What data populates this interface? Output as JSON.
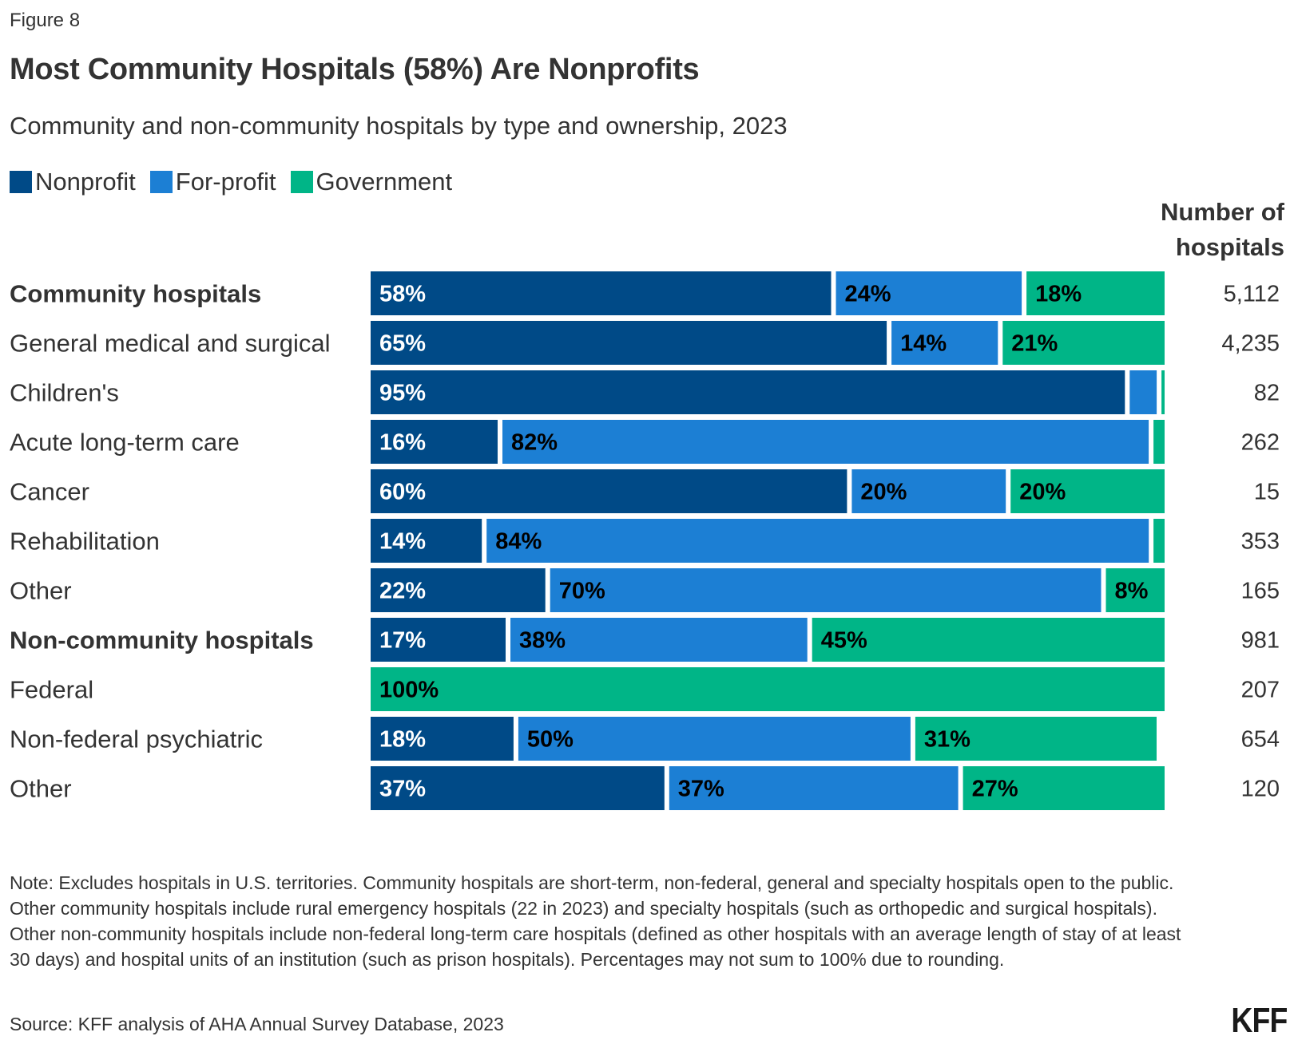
{
  "figure_label": "Figure 8",
  "title": "Most Community Hospitals (58%) Are Nonprofits",
  "subtitle": "Community and non-community hospitals by type and ownership, 2023",
  "legend": [
    {
      "label": "Nonprofit",
      "color": "#004A87"
    },
    {
      "label": "For-profit",
      "color": "#1C7FD4"
    },
    {
      "label": "Government",
      "color": "#00B587"
    }
  ],
  "count_header": [
    "Number of",
    "hospitals"
  ],
  "note": "Note: Excludes hospitals in U.S. territories. Community hospitals are short-term, non-federal, general and specialty hospitals open to the public. Other community hospitals include rural emergency hospitals (22 in 2023) and specialty hospitals (such as orthopedic and surgical hospitals). Other non-community hospitals include non-federal long-term care hospitals (defined as other hospitals with an average length of stay of at least 30 days) and hospital units of an institution (such as prison hospitals). Percentages may not sum to 100% due to rounding.",
  "source": "Source: KFF analysis of AHA Annual Survey Database, 2023",
  "logo": "KFF",
  "chart_data": {
    "type": "bar",
    "orientation": "horizontal",
    "stacked": true,
    "percent_scale": true,
    "title": "Most Community Hospitals (58%) Are Nonprofits",
    "subtitle": "Community and non-community hospitals by type and ownership, 2023",
    "xlabel": "",
    "ylabel": "",
    "xlim": [
      0,
      100
    ],
    "grid": false,
    "legend_position": "top-left",
    "categories": [
      "Community hospitals",
      "General medical and surgical",
      "Children's",
      "Acute long-term care",
      "Cancer",
      "Rehabilitation",
      "Other",
      "Non-community hospitals",
      "Federal",
      "Non-federal psychiatric",
      "Other"
    ],
    "category_bold": [
      true,
      false,
      false,
      false,
      false,
      false,
      false,
      true,
      false,
      false,
      false
    ],
    "series": [
      {
        "name": "Nonprofit",
        "color": "#004A87",
        "label_color": "#ffffff",
        "values": [
          58,
          65,
          95,
          16,
          60,
          14,
          22,
          17,
          0,
          18,
          37
        ],
        "labels": [
          "58%",
          "65%",
          "95%",
          "16%",
          "60%",
          "14%",
          "22%",
          "17%",
          "",
          "18%",
          "37%"
        ]
      },
      {
        "name": "For-profit",
        "color": "#1C7FD4",
        "label_color": "#000000",
        "values": [
          24,
          14,
          4,
          82,
          20,
          84,
          70,
          38,
          0,
          50,
          37
        ],
        "labels": [
          "24%",
          "14%",
          "",
          "82%",
          "20%",
          "84%",
          "70%",
          "38%",
          "",
          "50%",
          "37%"
        ]
      },
      {
        "name": "Government",
        "color": "#00B587",
        "label_color": "#000000",
        "values": [
          18,
          21,
          1,
          2,
          20,
          2,
          8,
          45,
          100,
          31,
          27
        ],
        "labels": [
          "18%",
          "21%",
          "",
          "",
          "20%",
          "",
          "8%",
          "45%",
          "100%",
          "31%",
          "27%"
        ]
      }
    ],
    "counts_header": "Number of hospitals",
    "counts": [
      "5,112",
      "4,235",
      "82",
      "262",
      "15",
      "353",
      "165",
      "981",
      "207",
      "654",
      "120"
    ]
  }
}
